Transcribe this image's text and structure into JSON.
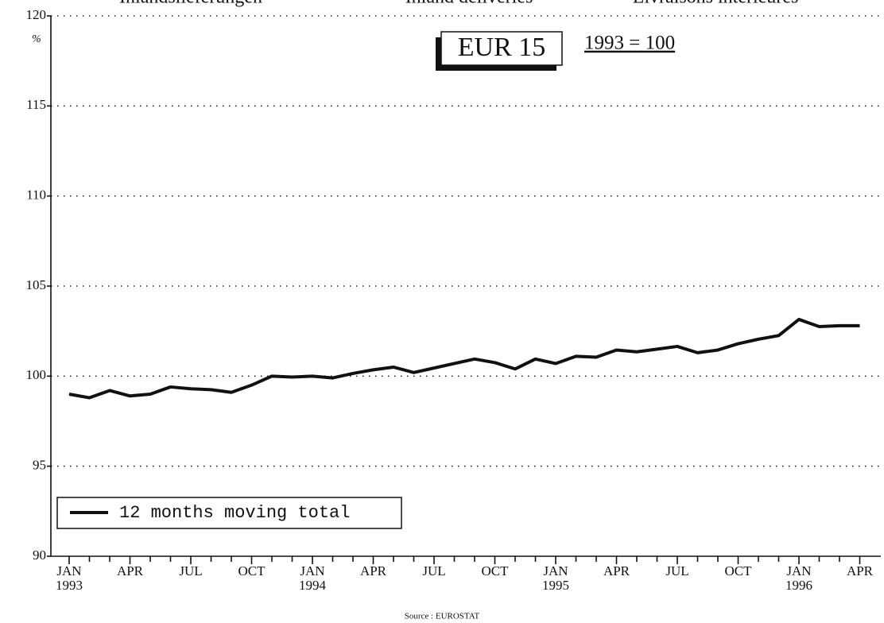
{
  "chart_data": {
    "type": "line",
    "header": [
      "Inlandslieferungen",
      "Inland deliveries",
      "Livraisons intérieures"
    ],
    "title": "EUR 15",
    "subtitle": "1993 = 100",
    "y_label": "%",
    "source": "Source : EUROSTAT",
    "categories": [
      "JAN 1993",
      null,
      null,
      "APR",
      null,
      null,
      "JUL",
      null,
      null,
      "OCT",
      null,
      null,
      "JAN 1994",
      null,
      null,
      "APR",
      null,
      null,
      "JUL",
      null,
      null,
      "OCT",
      null,
      null,
      "JAN 1995",
      null,
      null,
      "APR",
      null,
      null,
      "JUL",
      null,
      null,
      "OCT",
      null,
      null,
      "JAN 1996",
      null,
      null,
      "APR"
    ],
    "series": [
      {
        "name": "12 months moving total",
        "color": "#111111",
        "values": [
          99.0,
          98.8,
          99.2,
          98.9,
          99.0,
          99.4,
          99.3,
          99.25,
          99.1,
          99.5,
          100.0,
          99.95,
          100.0,
          99.9,
          100.15,
          100.35,
          100.5,
          100.2,
          100.45,
          100.7,
          100.95,
          100.75,
          100.4,
          100.95,
          100.7,
          101.1,
          101.05,
          101.45,
          101.35,
          101.5,
          101.65,
          101.3,
          101.45,
          101.8,
          102.05,
          102.25,
          103.15,
          102.75,
          102.8,
          102.8
        ]
      }
    ],
    "ylim": [
      90,
      120
    ],
    "yticks": [
      90,
      95,
      100,
      105,
      110,
      115,
      120
    ],
    "grid": true,
    "legend": "lower left"
  }
}
